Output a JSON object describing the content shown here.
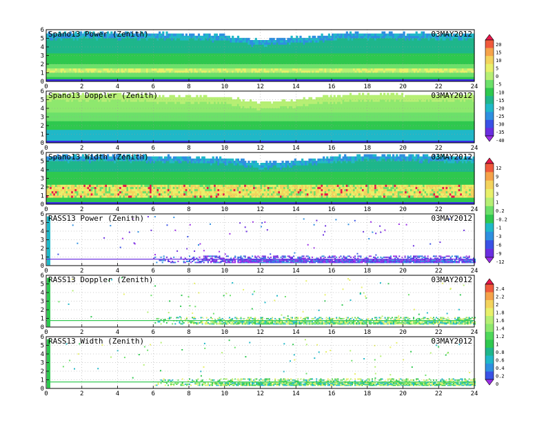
{
  "figure": {
    "date": "03MAY2012"
  },
  "chart_data": [
    {
      "type": "heatmap",
      "title": "Spano13 Power (Zenith)",
      "xlim": [
        0,
        24
      ],
      "ylim": [
        0,
        6
      ],
      "x_ticks": [
        "0",
        "2",
        "4",
        "6",
        "8",
        "10",
        "12",
        "14",
        "16",
        "18",
        "20",
        "22",
        "24"
      ],
      "y_ticks": [
        "0",
        "1",
        "2",
        "3",
        "4",
        "5",
        "6"
      ],
      "grid": true,
      "top_profile": [
        [
          0,
          5.4
        ],
        [
          4,
          5.5
        ],
        [
          8,
          5.3
        ],
        [
          10,
          5.2
        ],
        [
          12,
          4.6
        ],
        [
          14,
          4.9
        ],
        [
          16,
          5.3
        ],
        [
          18,
          5.5
        ],
        [
          20,
          5.4
        ],
        [
          24,
          5.3
        ]
      ],
      "colorbar": "scale1"
    },
    {
      "type": "heatmap",
      "title": "Spano13 Doppler (Zenith)",
      "xlim": [
        0,
        24
      ],
      "ylim": [
        0,
        6
      ],
      "x_ticks": [
        "0",
        "2",
        "4",
        "6",
        "8",
        "10",
        "12",
        "14",
        "16",
        "18",
        "20",
        "22",
        "24"
      ],
      "y_ticks": [
        "0",
        "1",
        "2",
        "3",
        "4",
        "5",
        "6"
      ],
      "grid": true,
      "top_profile": [
        [
          0,
          5.5
        ],
        [
          4,
          5.5
        ],
        [
          8,
          5.2
        ],
        [
          10,
          5.1
        ],
        [
          12,
          4.5
        ],
        [
          14,
          4.8
        ],
        [
          16,
          5.3
        ],
        [
          18,
          5.5
        ],
        [
          20,
          5.4
        ],
        [
          24,
          5.4
        ]
      ],
      "colorbar": "scale1"
    },
    {
      "type": "heatmap",
      "title": "Spano13 Width (Zenith)",
      "xlim": [
        0,
        24
      ],
      "ylim": [
        0,
        6
      ],
      "x_ticks": [
        "0",
        "2",
        "4",
        "6",
        "8",
        "10",
        "12",
        "14",
        "16",
        "18",
        "20",
        "22",
        "24"
      ],
      "y_ticks": [
        "0",
        "1",
        "2",
        "3",
        "4",
        "5",
        "6"
      ],
      "grid": true,
      "top_profile": [
        [
          0,
          5.5
        ],
        [
          4,
          5.5
        ],
        [
          8,
          5.3
        ],
        [
          10,
          5.2
        ],
        [
          12,
          4.6
        ],
        [
          14,
          4.9
        ],
        [
          16,
          5.3
        ],
        [
          18,
          5.6
        ],
        [
          20,
          5.5
        ],
        [
          24,
          5.4
        ]
      ],
      "colorbar": "scale2"
    },
    {
      "type": "heatmap",
      "title": "RASS13 Power (Zenith)",
      "xlim": [
        0,
        24
      ],
      "ylim": [
        0,
        6
      ],
      "x_ticks": [
        "0",
        "2",
        "4",
        "6",
        "8",
        "10",
        "12",
        "14",
        "16",
        "18",
        "20",
        "22",
        "24"
      ],
      "y_ticks": [
        "0",
        "1",
        "2",
        "3",
        "4",
        "5",
        "6"
      ],
      "grid": true,
      "colorbar": "scale2"
    },
    {
      "type": "heatmap",
      "title": "RASS13 Doppler (Zenith)",
      "xlim": [
        0,
        24
      ],
      "ylim": [
        0,
        6
      ],
      "x_ticks": [
        "0",
        "2",
        "4",
        "6",
        "8",
        "10",
        "12",
        "14",
        "16",
        "18",
        "20",
        "22",
        "24"
      ],
      "y_ticks": [
        "0",
        "1",
        "2",
        "3",
        "4",
        "5",
        "6"
      ],
      "grid": true,
      "colorbar": "scale3"
    },
    {
      "type": "heatmap",
      "title": "RASS13 Width (Zenith)",
      "xlim": [
        0,
        24
      ],
      "ylim": [
        0,
        6
      ],
      "x_ticks": [
        "0",
        "2",
        "4",
        "6",
        "8",
        "10",
        "12",
        "14",
        "16",
        "18",
        "20",
        "22",
        "24"
      ],
      "y_ticks": [
        "0",
        "1",
        "2",
        "3",
        "4",
        "5",
        "6"
      ],
      "grid": true,
      "colorbar": "scale3"
    }
  ],
  "colorbars": {
    "scale1": {
      "labels": [
        "20",
        "15",
        "10",
        "5",
        "0",
        "-5",
        "-10",
        "-15",
        "-20",
        "-25",
        "-30",
        "-35",
        "-40"
      ],
      "colors": [
        "#e8174a",
        "#f05a3c",
        "#f5a34a",
        "#f3d35c",
        "#e8f06a",
        "#b6ef74",
        "#6ce06a",
        "#2fc84f",
        "#1fb68b",
        "#20b8c8",
        "#2f8fe0",
        "#3a52e6",
        "#6a2ee0",
        "#9a2ee6"
      ]
    },
    "scale2": {
      "labels": [
        "12",
        "9",
        "6",
        "3",
        "1",
        "0.2",
        "-0.2",
        "-1",
        "-3",
        "-6",
        "-9",
        "-12"
      ],
      "colors": [
        "#e8174a",
        "#f05a3c",
        "#f5a34a",
        "#f3d35c",
        "#e8f06a",
        "#b6ef74",
        "#6ce06a",
        "#2fc84f",
        "#20b8c8",
        "#2f8fe0",
        "#3a52e6",
        "#6a2ee0",
        "#9a2ee6"
      ]
    },
    "scale3": {
      "labels": [
        "2.4",
        "2.2",
        "2",
        "1.8",
        "1.6",
        "1.4",
        "1.2",
        "1",
        "0.8",
        "0.6",
        "0.4",
        "0.2",
        "0"
      ],
      "colors": [
        "#e8174a",
        "#f05a3c",
        "#f5a34a",
        "#f3d35c",
        "#e8f06a",
        "#b6ef74",
        "#8ee86e",
        "#4fd85a",
        "#2fc84f",
        "#1fb68b",
        "#20b8c8",
        "#2f8fe0",
        "#3a52e6",
        "#9a2ee6"
      ]
    }
  }
}
